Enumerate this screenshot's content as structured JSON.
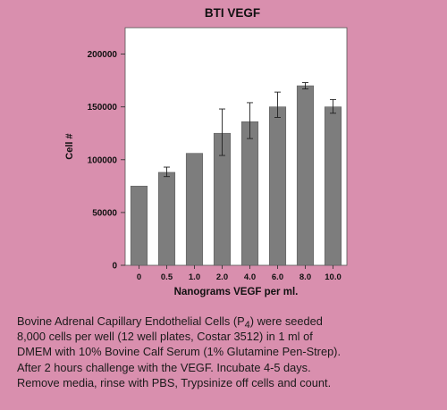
{
  "chart_data": {
    "type": "bar",
    "title": "BTI VEGF",
    "xlabel": "Nanograms VEGF per ml.",
    "ylabel": "Cell #",
    "categories": [
      "0",
      "0.5",
      "1.0",
      "2.0",
      "4.0",
      "6.0",
      "8.0",
      "10.0"
    ],
    "values": [
      75000,
      88000,
      106000,
      125000,
      136000,
      150000,
      170000,
      150000
    ],
    "error_low": [
      75000,
      84000,
      106000,
      104000,
      120000,
      140000,
      167000,
      144000
    ],
    "error_high": [
      75000,
      93000,
      106000,
      148000,
      154000,
      164000,
      173000,
      157000
    ],
    "yticks": [
      0,
      50000,
      100000,
      150000,
      200000
    ],
    "ylim": [
      0,
      225000
    ],
    "grid": false,
    "colors": {
      "bar": "#7d7d7d",
      "plot_bg": "#ffffff",
      "page_bg": "#d98fae",
      "axis": "#333333"
    }
  },
  "caption": {
    "line1_pre": "Bovine Adrenal Capillary Endothelial Cells (P",
    "line1_sub": "4",
    "line1_post": ") were seeded",
    "line2": "8,000 cells per well (12 well plates, Costar 3512) in 1 ml of",
    "line3": "DMEM with 10% Bovine Calf Serum (1% Glutamine Pen-Strep).",
    "line4": "After 2 hours challenge with the VEGF. Incubate 4-5 days.",
    "line5": "Remove media, rinse with PBS, Trypsinize off cells and count."
  }
}
